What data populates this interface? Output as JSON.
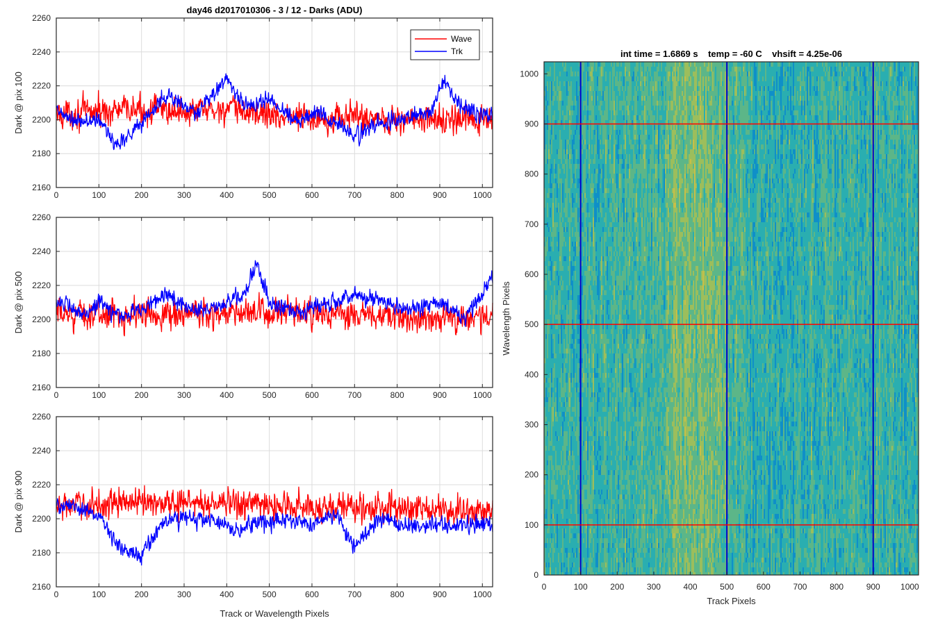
{
  "chart_data": [
    {
      "type": "line",
      "title": "day46 d2017010306 - 3 / 12 - Darks (ADU)",
      "xlabel": "",
      "ylabel": "Dark @ pix 100",
      "xlim": [
        0,
        1024
      ],
      "ylim": [
        2160,
        2260
      ],
      "xticks": [
        0,
        100,
        200,
        300,
        400,
        500,
        600,
        700,
        800,
        900,
        1000
      ],
      "yticks": [
        2160,
        2180,
        2200,
        2220,
        2240,
        2260
      ],
      "grid": true,
      "legend_position": "top-right",
      "series": [
        {
          "name": "Wave",
          "color": "#ff0000",
          "mean": 2202,
          "noise": 7,
          "anchors_x": [
            0,
            100,
            200,
            300,
            400,
            500,
            600,
            700,
            800,
            900,
            1024
          ],
          "anchors_y": [
            2203,
            2205,
            2206,
            2205,
            2206,
            2203,
            2201,
            2202,
            2200,
            2200,
            2199
          ]
        },
        {
          "name": "Trk",
          "color": "#0000ff",
          "noise": 4,
          "anchors_x": [
            0,
            50,
            100,
            140,
            200,
            260,
            300,
            330,
            400,
            440,
            500,
            560,
            620,
            700,
            760,
            840,
            880,
            910,
            960,
            1024
          ],
          "anchors_y": [
            2205,
            2198,
            2200,
            2185,
            2198,
            2215,
            2208,
            2203,
            2225,
            2208,
            2212,
            2200,
            2205,
            2190,
            2198,
            2202,
            2206,
            2222,
            2206,
            2203
          ]
        }
      ]
    },
    {
      "type": "line",
      "title": "",
      "xlabel": "",
      "ylabel": "Dark @ pix 500",
      "xlim": [
        0,
        1024
      ],
      "ylim": [
        2160,
        2260
      ],
      "xticks": [
        0,
        100,
        200,
        300,
        400,
        500,
        600,
        700,
        800,
        900,
        1000
      ],
      "yticks": [
        2160,
        2180,
        2200,
        2220,
        2240,
        2260
      ],
      "grid": true,
      "series": [
        {
          "name": "Wave",
          "color": "#ff0000",
          "noise": 7,
          "anchors_x": [
            0,
            200,
            400,
            600,
            800,
            1024
          ],
          "anchors_y": [
            2203,
            2203,
            2204,
            2203,
            2201,
            2201
          ]
        },
        {
          "name": "Trk",
          "color": "#0000ff",
          "noise": 4,
          "anchors_x": [
            0,
            60,
            100,
            150,
            200,
            260,
            300,
            350,
            400,
            440,
            470,
            500,
            560,
            620,
            700,
            760,
            820,
            900,
            960,
            1000,
            1024
          ],
          "anchors_y": [
            2212,
            2202,
            2210,
            2202,
            2206,
            2215,
            2208,
            2205,
            2210,
            2215,
            2232,
            2210,
            2205,
            2208,
            2215,
            2210,
            2205,
            2210,
            2200,
            2215,
            2225
          ]
        }
      ]
    },
    {
      "type": "line",
      "title": "",
      "xlabel": "Track or Wavelength Pixels",
      "ylabel": "Dark @ pix 900",
      "xlim": [
        0,
        1024
      ],
      "ylim": [
        2160,
        2260
      ],
      "xticks": [
        0,
        100,
        200,
        300,
        400,
        500,
        600,
        700,
        800,
        900,
        1000
      ],
      "yticks": [
        2160,
        2180,
        2200,
        2220,
        2240,
        2260
      ],
      "grid": true,
      "series": [
        {
          "name": "Wave",
          "color": "#ff0000",
          "noise": 7,
          "anchors_x": [
            0,
            200,
            400,
            600,
            800,
            1024
          ],
          "anchors_y": [
            2207,
            2210,
            2209,
            2207,
            2206,
            2204
          ]
        },
        {
          "name": "Trk",
          "color": "#0000ff",
          "noise": 4,
          "anchors_x": [
            0,
            60,
            100,
            140,
            200,
            250,
            300,
            350,
            420,
            480,
            550,
            600,
            650,
            700,
            760,
            820,
            880,
            950,
            1024
          ],
          "anchors_y": [
            2208,
            2206,
            2202,
            2186,
            2178,
            2198,
            2200,
            2200,
            2193,
            2198,
            2200,
            2197,
            2203,
            2183,
            2200,
            2196,
            2196,
            2197,
            2197
          ]
        }
      ]
    },
    {
      "type": "heatmap",
      "title": "int time = 1.6869 s    temp = -60 C    vhsift = 4.25e-06",
      "xlabel": "Track Pixels",
      "ylabel": "Wavelength Pixels",
      "xlim": [
        0,
        1024
      ],
      "ylim": [
        0,
        1024
      ],
      "xticks": [
        0,
        100,
        200,
        300,
        400,
        500,
        600,
        700,
        800,
        900,
        1000
      ],
      "yticks": [
        0,
        100,
        200,
        300,
        400,
        500,
        600,
        700,
        800,
        900,
        1000
      ],
      "colormap": [
        "#0f8fc8",
        "#2aaeb0",
        "#5cb688",
        "#9cbe5c",
        "#c8bf48"
      ],
      "markers": {
        "vertical": {
          "color": "#0000cc",
          "x": [
            100,
            500,
            900
          ]
        },
        "horizontal": {
          "color": "#ff0000",
          "y": [
            100,
            500,
            900
          ]
        }
      }
    }
  ]
}
